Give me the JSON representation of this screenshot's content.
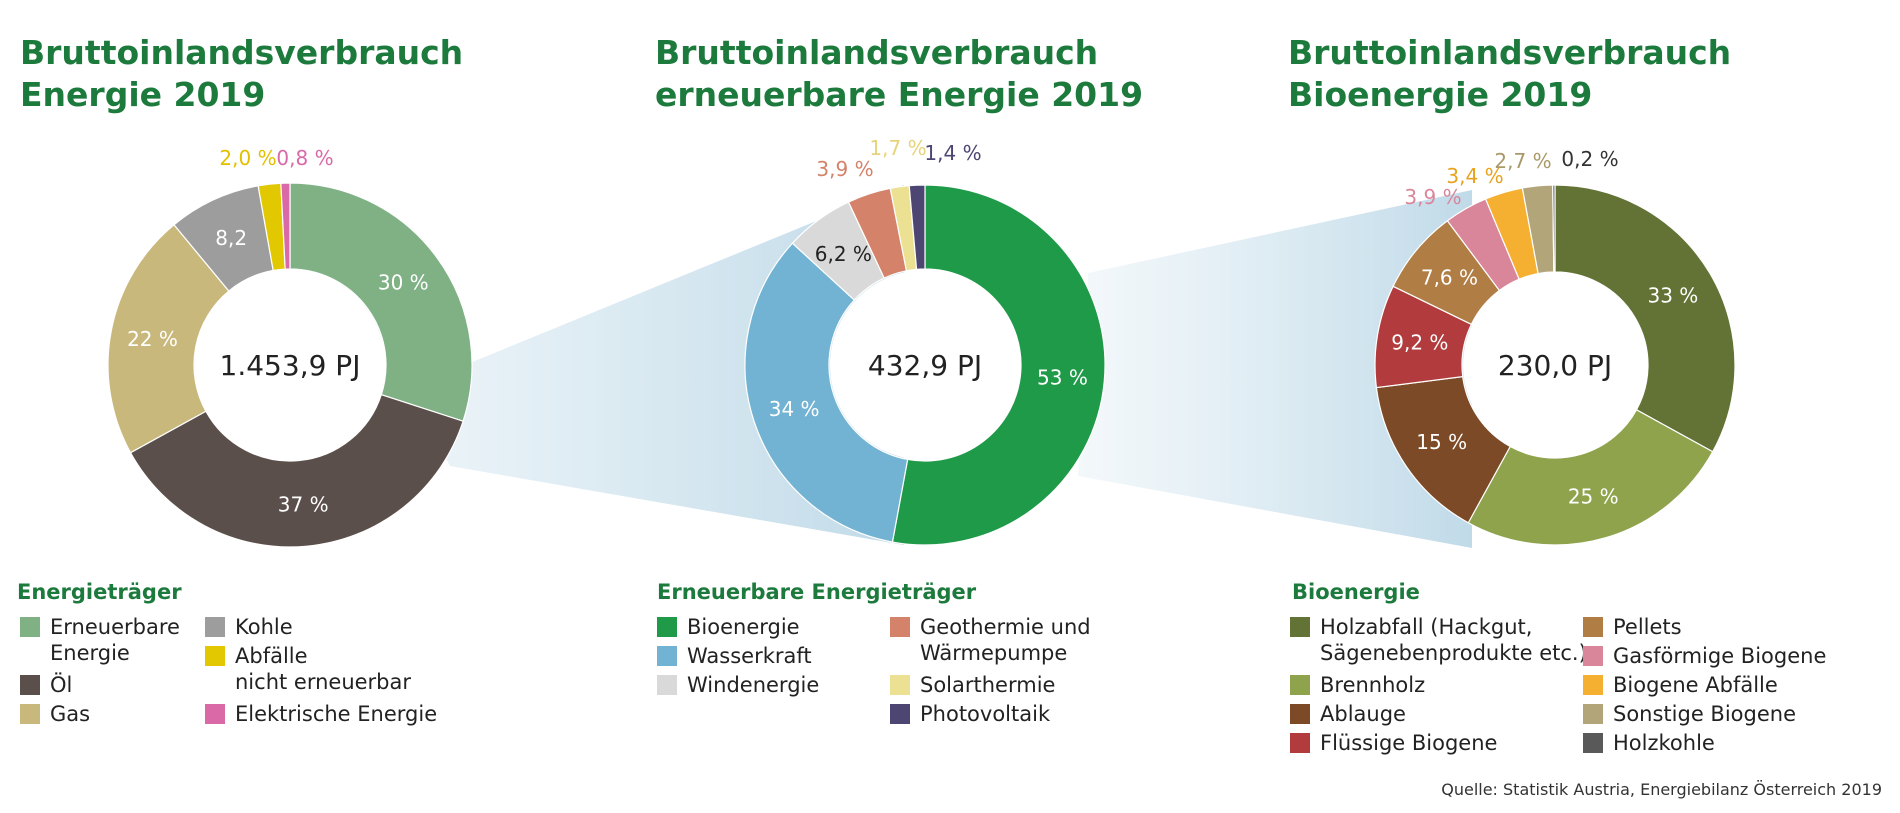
{
  "source": "Quelle: Statistik Austria, Energiebilanz Österreich 2019",
  "chart_data": [
    {
      "type": "pie",
      "title_lines": [
        "Bruttoinlandsverbrauch",
        "Energie 2019"
      ],
      "center_label": "1.453,9 PJ",
      "legend_title": "Energieträger",
      "slices": [
        {
          "name": "Erneuerbare Energie",
          "value": 30,
          "label": "30 %",
          "color": "#7fb185",
          "label_color": "#ffffff"
        },
        {
          "name": "Öl",
          "value": 37,
          "label": "37 %",
          "color": "#5b4f4b",
          "label_color": "#ffffff"
        },
        {
          "name": "Gas",
          "value": 22,
          "label": "22 %",
          "color": "#c9b87c",
          "label_color": "#ffffff"
        },
        {
          "name": "Kohle",
          "value": 8.2,
          "label": "8,2",
          "color": "#9d9d9d",
          "label_color": "#ffffff"
        },
        {
          "name": "Abfälle nicht erneuerbar",
          "value": 2.0,
          "label": "2,0 %",
          "color": "#e2c800",
          "label_color": "#e2c000"
        },
        {
          "name": "Elektrische Energie",
          "value": 0.8,
          "label": "0,8 %",
          "color": "#d96aa7",
          "label_color": "#d96aa7"
        }
      ],
      "legend_items": [
        {
          "lines": [
            "Erneuerbare",
            "Energie"
          ],
          "color": "#7fb185"
        },
        {
          "lines": [
            "Öl"
          ],
          "color": "#5b4f4b"
        },
        {
          "lines": [
            "Gas"
          ],
          "color": "#c9b87c"
        },
        {
          "lines": [
            "Kohle"
          ],
          "color": "#9d9d9d"
        },
        {
          "lines": [
            "Abfälle",
            "nicht erneuerbar"
          ],
          "color": "#e2c800"
        },
        {
          "lines": [
            "Elektrische Energie"
          ],
          "color": "#d96aa7"
        }
      ]
    },
    {
      "type": "pie",
      "title_lines": [
        "Bruttoinlandsverbrauch",
        "erneuerbare Energie 2019"
      ],
      "center_label": "432,9 PJ",
      "legend_title": "Erneuerbare Energieträger",
      "slices": [
        {
          "name": "Bioenergie",
          "value": 53,
          "label": "53 %",
          "color": "#1f9a48",
          "label_color": "#ffffff"
        },
        {
          "name": "Wasserkraft",
          "value": 34,
          "label": "34 %",
          "color": "#72b2d2",
          "label_color": "#ffffff"
        },
        {
          "name": "Windenergie",
          "value": 6.2,
          "label": "6,2 %",
          "color": "#d9d9d9",
          "label_color": "#222222"
        },
        {
          "name": "Geothermie und Wärmepumpe",
          "value": 3.9,
          "label": "3,9 %",
          "color": "#d4826a",
          "label_color": "#d4826a"
        },
        {
          "name": "Solarthermie",
          "value": 1.7,
          "label": "1,7 %",
          "color": "#ece093",
          "label_color": "#e6d37a"
        },
        {
          "name": "Photovoltaik",
          "value": 1.4,
          "label": "1,4 %",
          "color": "#4e4672",
          "label_color": "#4e4672"
        }
      ],
      "legend_items": [
        {
          "lines": [
            "Bioenergie"
          ],
          "color": "#1f9a48"
        },
        {
          "lines": [
            "Wasserkraft"
          ],
          "color": "#72b2d2"
        },
        {
          "lines": [
            "Windenergie"
          ],
          "color": "#d9d9d9"
        },
        {
          "lines": [
            "Geothermie und",
            "Wärmepumpe"
          ],
          "color": "#d4826a"
        },
        {
          "lines": [
            "Solarthermie"
          ],
          "color": "#ece093"
        },
        {
          "lines": [
            "Photovoltaik"
          ],
          "color": "#4e4672"
        }
      ]
    },
    {
      "type": "pie",
      "title_lines": [
        "Bruttoinlandsverbrauch",
        "Bioenergie 2019"
      ],
      "center_label": "230,0 PJ",
      "legend_title": "Bioenergie",
      "slices": [
        {
          "name": "Holzabfall (Hackgut, Sägenebenprodukte etc.)",
          "value": 33,
          "label": "33 %",
          "color": "#637235",
          "label_color": "#ffffff"
        },
        {
          "name": "Brennholz",
          "value": 25,
          "label": "25 %",
          "color": "#8ea34c",
          "label_color": "#ffffff"
        },
        {
          "name": "Ablauge",
          "value": 15,
          "label": "15 %",
          "color": "#7c4a26",
          "label_color": "#ffffff"
        },
        {
          "name": "Flüssige Biogene",
          "value": 9.2,
          "label": "9,2 %",
          "color": "#b13b3d",
          "label_color": "#ffffff"
        },
        {
          "name": "Pellets",
          "value": 7.6,
          "label": "7,6 %",
          "color": "#b07d45",
          "label_color": "#ffffff"
        },
        {
          "name": "Gasförmige Biogene",
          "value": 3.9,
          "label": "3,9 %",
          "color": "#d9869a",
          "label_color": "#d9869a"
        },
        {
          "name": "Biogene Abfälle",
          "value": 3.4,
          "label": "3,4 %",
          "color": "#f5b031",
          "label_color": "#e8a21e"
        },
        {
          "name": "Sonstige Biogene",
          "value": 2.7,
          "label": "2,7 %",
          "color": "#b2a57a",
          "label_color": "#a99968"
        },
        {
          "name": "Holzkohle",
          "value": 0.2,
          "label": "0,2 %",
          "color": "#595959",
          "label_color": "#333333"
        }
      ],
      "legend_items": [
        {
          "lines": [
            "Holzabfall (Hackgut,",
            "Sägenebenprodukte etc.)"
          ],
          "color": "#637235"
        },
        {
          "lines": [
            "Brennholz"
          ],
          "color": "#8ea34c"
        },
        {
          "lines": [
            "Ablauge"
          ],
          "color": "#7c4a26"
        },
        {
          "lines": [
            "Flüssige Biogene"
          ],
          "color": "#b13b3d"
        },
        {
          "lines": [
            "Pellets"
          ],
          "color": "#b07d45"
        },
        {
          "lines": [
            "Gasförmige Biogene"
          ],
          "color": "#d9869a"
        },
        {
          "lines": [
            "Biogene Abfälle"
          ],
          "color": "#f5b031"
        },
        {
          "lines": [
            "Sonstige Biogene"
          ],
          "color": "#b2a57a"
        },
        {
          "lines": [
            "Holzkohle"
          ],
          "color": "#595959"
        }
      ]
    }
  ]
}
